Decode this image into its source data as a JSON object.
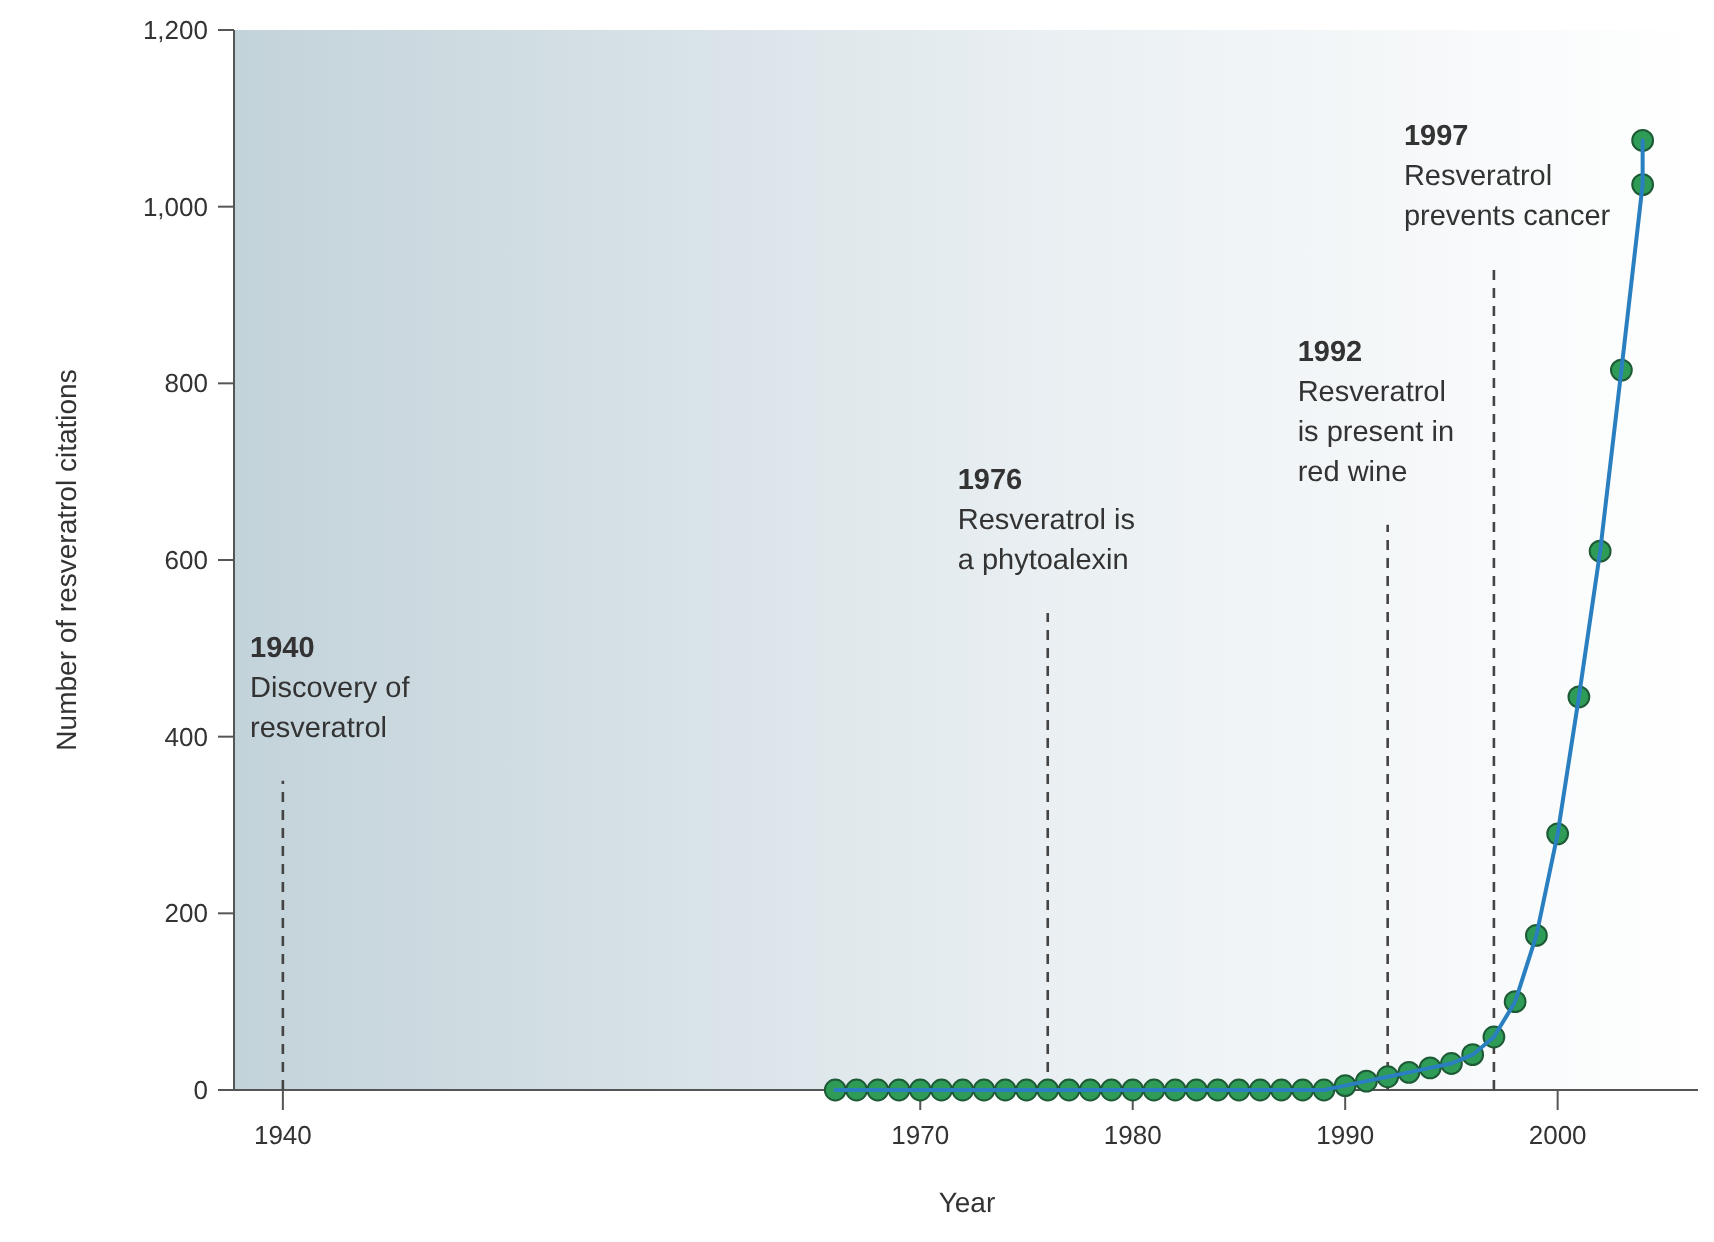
{
  "chart_data": {
    "type": "line",
    "xlabel": "Year",
    "ylabel": "Number of resveratrol citations",
    "x": [
      1966,
      1967,
      1968,
      1969,
      1970,
      1971,
      1972,
      1973,
      1974,
      1975,
      1976,
      1977,
      1978,
      1979,
      1980,
      1981,
      1982,
      1983,
      1984,
      1985,
      1986,
      1987,
      1988,
      1989,
      1990,
      1991,
      1992,
      1993,
      1994,
      1995,
      1996,
      1997,
      1998,
      1999,
      2000,
      2001,
      2002,
      2003,
      2004,
      2004
    ],
    "series": [
      {
        "color": "#2a7fc0",
        "marker": "none",
        "values": [
          0,
          0,
          0,
          0,
          0,
          0,
          0,
          0,
          0,
          0,
          0,
          0,
          0,
          0,
          0,
          0,
          0,
          0,
          0,
          0,
          0,
          0,
          0,
          0,
          5,
          10,
          15,
          20,
          25,
          30,
          40,
          60,
          100,
          175,
          290,
          445,
          610,
          815,
          1025,
          1075
        ]
      },
      {
        "type": "scatter",
        "color": "#2e9b57",
        "marker": "circle",
        "values": [
          0,
          0,
          0,
          0,
          0,
          0,
          0,
          0,
          0,
          0,
          0,
          0,
          0,
          0,
          0,
          0,
          0,
          0,
          0,
          0,
          0,
          0,
          0,
          0,
          5,
          10,
          15,
          20,
          25,
          30,
          40,
          60,
          100,
          175,
          290,
          445,
          610,
          815,
          1025,
          1075
        ]
      }
    ],
    "xlim": [
      1937.7,
      2006.7
    ],
    "xticks": [
      1940,
      1970,
      1980,
      1990,
      2000
    ],
    "ylim": [
      0,
      1200
    ],
    "yticks": [
      0,
      200,
      400,
      600,
      800,
      {
        "value": 1000,
        "label": "1,000"
      },
      {
        "value": 1200,
        "label": "1,200"
      }
    ],
    "ref_lines": [
      {
        "axis": "x",
        "value": 1940,
        "line_style": "dashed",
        "color": "#444444"
      },
      {
        "axis": "x",
        "value": 1976,
        "line_style": "dashed",
        "color": "#444444"
      },
      {
        "axis": "x",
        "value": 1992,
        "line_style": "dashed",
        "color": "#444444"
      },
      {
        "axis": "x",
        "value": 1997,
        "line_style": "dashed",
        "color": "#444444"
      }
    ],
    "annotations": [
      {
        "text": "1940\nDiscovery of\nresveratrol",
        "x": 1940,
        "y": 350
      },
      {
        "text": "1976\nResveratrol is\na phytoalexin",
        "x": 1976,
        "y": 540
      },
      {
        "text": "1992\nResveratrol\nis present in\nred wine",
        "x": 1992,
        "y": 640
      },
      {
        "text": "1997\nResveratrol\nprevents cancer",
        "x": 1997,
        "y": 930
      }
    ]
  }
}
